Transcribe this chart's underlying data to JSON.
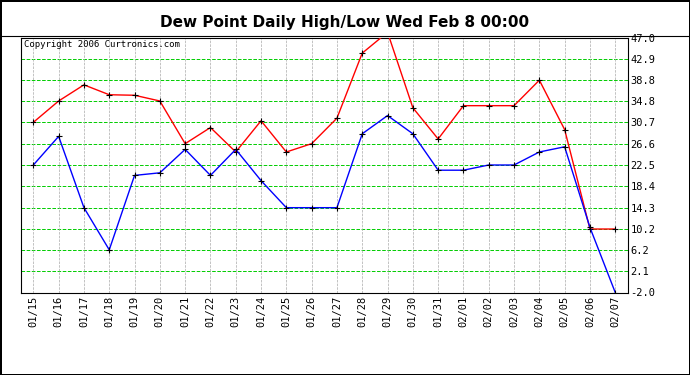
{
  "title": "Dew Point Daily High/Low Wed Feb 8 00:00",
  "copyright": "Copyright 2006 Curtronics.com",
  "dates": [
    "01/15",
    "01/16",
    "01/17",
    "01/18",
    "01/19",
    "01/20",
    "01/21",
    "01/22",
    "01/23",
    "01/24",
    "01/25",
    "01/26",
    "01/27",
    "01/28",
    "01/29",
    "01/30",
    "01/31",
    "02/01",
    "02/02",
    "02/03",
    "02/04",
    "02/05",
    "02/06",
    "02/07"
  ],
  "high": [
    30.7,
    34.8,
    37.9,
    36.0,
    35.9,
    34.8,
    26.6,
    29.7,
    25.0,
    31.0,
    25.0,
    26.6,
    31.5,
    44.0,
    48.0,
    33.5,
    27.5,
    33.9,
    33.9,
    33.9,
    38.8,
    29.3,
    10.2,
    10.2
  ],
  "low": [
    22.5,
    28.0,
    14.3,
    6.2,
    20.5,
    21.0,
    25.5,
    20.5,
    25.5,
    19.5,
    14.3,
    14.3,
    14.3,
    28.5,
    32.0,
    28.5,
    21.5,
    21.5,
    22.5,
    22.5,
    25.0,
    26.0,
    10.5,
    -2.0
  ],
  "high_color": "#ff0000",
  "low_color": "#0000ff",
  "marker_color": "#000000",
  "bg_color": "#ffffff",
  "grid_color_h": "#00cc00",
  "grid_color_v": "#aaaaaa",
  "yticks": [
    47.0,
    42.9,
    38.8,
    34.8,
    30.7,
    26.6,
    22.5,
    18.4,
    14.3,
    10.2,
    6.2,
    2.1,
    -2.0
  ],
  "ymin": -2.0,
  "ymax": 47.0,
  "title_fontsize": 11,
  "tick_fontsize": 7.5,
  "copyright_fontsize": 6.5
}
